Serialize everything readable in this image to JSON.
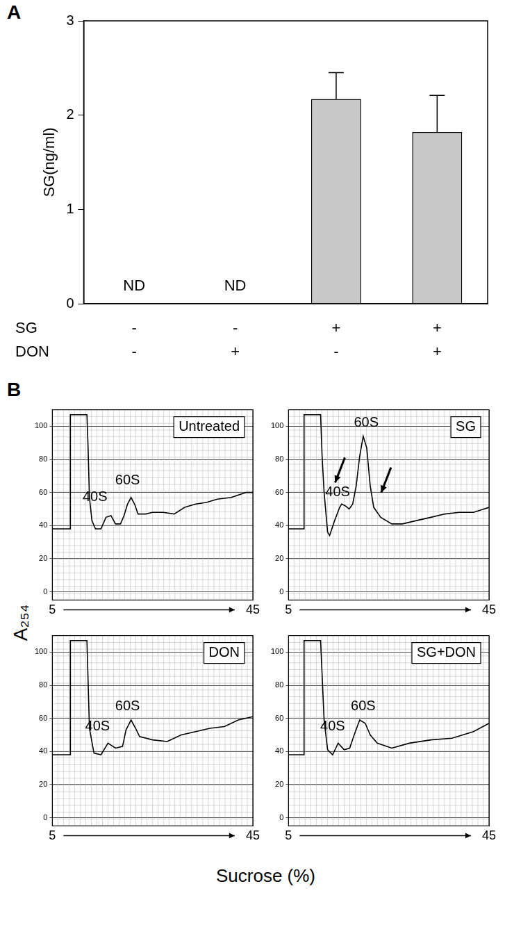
{
  "chart_data": [
    {
      "type": "bar",
      "ylabel": "SG(ng/ml)",
      "categories": [
        [
          "-",
          "-"
        ],
        [
          "-",
          "+"
        ],
        [
          "+",
          "-"
        ],
        [
          "+",
          "+"
        ]
      ],
      "category_rows": [
        "SG",
        "DON"
      ],
      "values": [
        null,
        null,
        2.17,
        1.82
      ],
      "errors": [
        null,
        null,
        0.28,
        0.39
      ],
      "value_labels": [
        "ND",
        "ND",
        null,
        null
      ],
      "data_labels": true,
      "color": "#c8c8c8",
      "ylim": [
        0,
        3
      ],
      "yticks": [
        0,
        1,
        2,
        3
      ],
      "grid": false
    },
    {
      "type": "line",
      "title": "Untreated",
      "color": "#000000",
      "x": [
        5,
        8.6,
        8.6,
        11.9,
        12.1,
        12.4,
        12.9,
        13.6,
        14.7,
        15.7,
        16.7,
        17.6,
        18.6,
        19.3,
        20.0,
        20.7,
        21.4,
        22.1,
        23.6,
        25,
        27.1,
        29.3,
        31.4,
        33.6,
        35.7,
        37.9,
        40.7,
        43.6,
        45
      ],
      "values": [
        38,
        38,
        107,
        107,
        90,
        57,
        43,
        38,
        38,
        45,
        46,
        41,
        41,
        46,
        53,
        57,
        53,
        47,
        47,
        48,
        48,
        47,
        51,
        53,
        54,
        56,
        57,
        60,
        60
      ],
      "annotations": [
        {
          "text": "40S",
          "x": 13.5,
          "y": 57
        },
        {
          "text": "60S",
          "x": 20,
          "y": 67
        }
      ],
      "xlim": [
        5,
        45
      ],
      "xticks": [
        5,
        45
      ],
      "ylim": [
        -5,
        110
      ],
      "yticks": [
        0,
        20,
        40,
        60,
        80,
        100
      ],
      "grid": true
    },
    {
      "type": "line",
      "title": "SG",
      "color": "#000000",
      "x": [
        5,
        8.1,
        8.1,
        11.4,
        11.7,
        12.1,
        12.8,
        13.2,
        14.2,
        15.2,
        15.6,
        16.3,
        17.1,
        17.8,
        18.5,
        19.2,
        19.9,
        20.6,
        21.3,
        22.0,
        23.4,
        25.6,
        27.7,
        30.5,
        33.4,
        36.2,
        39.0,
        41.9,
        45
      ],
      "values": [
        38,
        38,
        107,
        107,
        82,
        60,
        36,
        34,
        43,
        51,
        53,
        52,
        50,
        53,
        64,
        82,
        94,
        87,
        64,
        51,
        45,
        41,
        41,
        43,
        45,
        47,
        48,
        48,
        51
      ],
      "annotations": [
        {
          "text": "40S",
          "x": 14.8,
          "y": 60
        },
        {
          "text": "60S",
          "x": 20.5,
          "y": 102
        }
      ],
      "arrows": [
        {
          "x": 14.3,
          "y": 66
        },
        {
          "x": 23.5,
          "y": 60
        }
      ],
      "xlim": [
        5,
        45
      ],
      "xticks": [
        5,
        45
      ],
      "ylim": [
        -5,
        110
      ],
      "yticks": [
        0,
        20,
        40,
        60,
        80,
        100
      ],
      "grid": true
    },
    {
      "type": "line",
      "title": "DON",
      "color": "#000000",
      "x": [
        5,
        8.6,
        8.6,
        11.9,
        12.4,
        13.3,
        14.7,
        16.1,
        17.6,
        19.0,
        19.7,
        20.7,
        21.6,
        22.4,
        25,
        27.9,
        30.7,
        33.6,
        36.4,
        39.3,
        42.1,
        45
      ],
      "values": [
        38,
        38,
        107,
        107,
        54,
        39,
        38,
        45,
        42,
        43,
        53,
        59,
        54,
        49,
        47,
        46,
        50,
        52,
        54,
        55,
        59,
        61
      ],
      "annotations": [
        {
          "text": "40S",
          "x": 14.0,
          "y": 55
        },
        {
          "text": "60S",
          "x": 20,
          "y": 67
        }
      ],
      "xlim": [
        5,
        45
      ],
      "xticks": [
        5,
        45
      ],
      "ylim": [
        -5,
        110
      ],
      "yticks": [
        0,
        20,
        40,
        60,
        80,
        100
      ],
      "grid": true
    },
    {
      "type": "line",
      "title": "SG+DON",
      "color": "#000000",
      "x": [
        5,
        8.1,
        8.1,
        11.4,
        12.1,
        12.8,
        13.8,
        14.9,
        16.1,
        17.2,
        18.1,
        19.2,
        20.3,
        21.3,
        22.7,
        25.6,
        29.1,
        33.4,
        37.6,
        41.9,
        45
      ],
      "values": [
        38,
        38,
        107,
        107,
        59,
        41,
        38,
        45,
        41,
        42,
        50,
        59,
        57,
        50,
        45,
        42,
        45,
        47,
        48,
        52,
        57
      ],
      "annotations": [
        {
          "text": "40S",
          "x": 13.8,
          "y": 55
        },
        {
          "text": "60S",
          "x": 19.9,
          "y": 67
        }
      ],
      "xlim": [
        5,
        45
      ],
      "xticks": [
        5,
        45
      ],
      "ylim": [
        -5,
        110
      ],
      "yticks": [
        0,
        20,
        40,
        60,
        80,
        100
      ],
      "grid": true
    }
  ],
  "panel_labels": [
    "A",
    "B"
  ],
  "shared_axes": {
    "ylabel": "A₂₅₄",
    "xlabel": "Sucrose (%)"
  }
}
